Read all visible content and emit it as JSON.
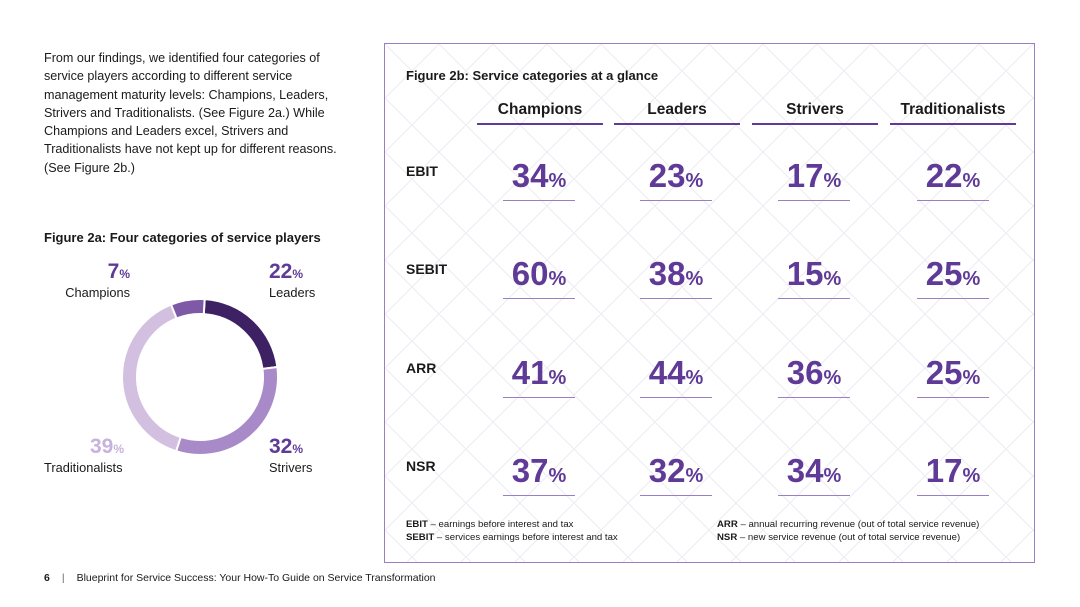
{
  "intro": {
    "text": "From our findings, we identified four categories of service players according to different service management maturity levels: Champions, Leaders, Strivers and Traditionalists. (See Figure 2a.) While Champions and Leaders excel, Strivers and Traditionalists have not kept up for different reasons. (See Figure 2b.)"
  },
  "figure_2a": {
    "title": "Figure 2a: Four categories of service players",
    "labels": {
      "champions": {
        "value": "7",
        "pct": "%",
        "name": "Champions"
      },
      "leaders": {
        "value": "22",
        "pct": "%",
        "name": "Leaders"
      },
      "strivers": {
        "value": "32",
        "pct": "%",
        "name": "Strivers"
      },
      "traditionalists": {
        "value": "39",
        "pct": "%",
        "name": "Traditionalists"
      }
    }
  },
  "figure_2b": {
    "title": "Figure 2b: Service categories at a glance",
    "columns": [
      "Champions",
      "Leaders",
      "Strivers",
      "Traditionalists"
    ],
    "rows": [
      {
        "label": "EBIT",
        "values": [
          "34",
          "23",
          "17",
          "22"
        ]
      },
      {
        "label": "SEBIT",
        "values": [
          "60",
          "38",
          "15",
          "25"
        ]
      },
      {
        "label": "ARR",
        "values": [
          "41",
          "44",
          "36",
          "25"
        ]
      },
      {
        "label": "NSR",
        "values": [
          "37",
          "32",
          "34",
          "17"
        ]
      }
    ],
    "pct": "%",
    "legend": {
      "ebit_abbr": "EBIT",
      "ebit_text": " – earnings before interest and tax",
      "sebit_abbr": "SEBIT",
      "sebit_text": " – services earnings before interest and tax",
      "arr_abbr": "ARR",
      "arr_text": " – annual recurring revenue (out of total service revenue)",
      "nsr_abbr": "NSR",
      "nsr_text": " – new service revenue (out of total service revenue)"
    }
  },
  "chart_data": {
    "type": "pie",
    "title": "Figure 2a: Four categories of service players",
    "categories": [
      "Leaders",
      "Strivers",
      "Traditionalists",
      "Champions"
    ],
    "values": [
      22,
      32,
      39,
      7
    ],
    "colors": [
      "#3d2163",
      "#a88ac9",
      "#d3bfe0",
      "#7e5aa6"
    ]
  },
  "footer": {
    "page": "6",
    "separator": "|",
    "title": "Blueprint for Service Success: Your How-To Guide on Service Transformation"
  },
  "colors": {
    "accent": "#5f3a96",
    "border": "#9b7fc4"
  }
}
